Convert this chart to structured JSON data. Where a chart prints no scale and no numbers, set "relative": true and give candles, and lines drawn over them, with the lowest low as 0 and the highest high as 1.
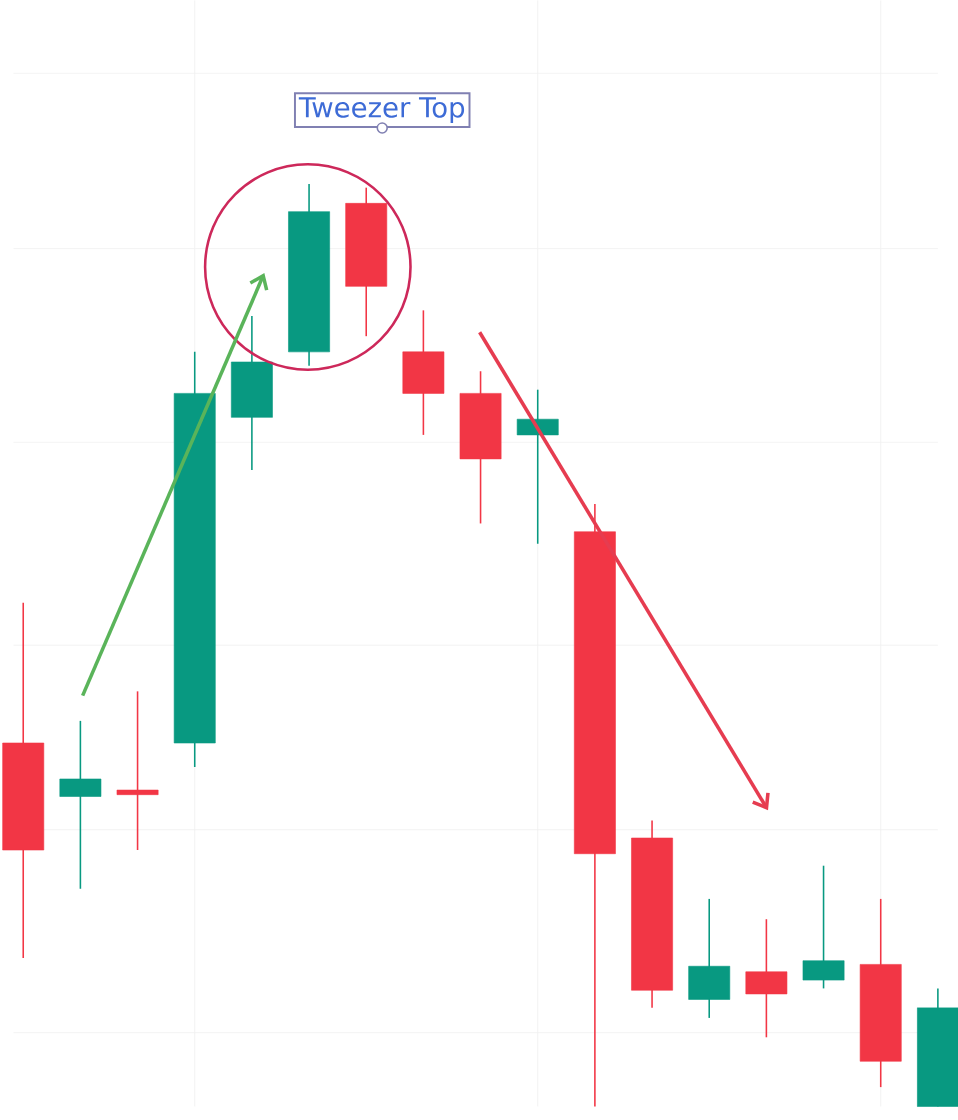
{
  "chart_data": {
    "type": "candlestick",
    "relative": true,
    "grid": true,
    "categories": [
      null,
      null,
      null,
      null,
      null,
      null,
      null,
      null,
      null,
      null,
      null,
      null,
      null,
      null,
      null,
      null,
      null
    ],
    "ohlc": [
      [
        0.394,
        0.546,
        0.161,
        0.278
      ],
      [
        0.336,
        0.418,
        0.236,
        0.355
      ],
      [
        0.343,
        0.45,
        0.278,
        0.338
      ],
      [
        0.394,
        0.818,
        0.368,
        0.773
      ],
      [
        0.747,
        0.857,
        0.69,
        0.807
      ],
      [
        0.818,
        1,
        0.803,
        0.97
      ],
      [
        0.979,
        0.996,
        0.835,
        0.889
      ],
      [
        0.818,
        0.863,
        0.728,
        0.773
      ],
      [
        0.773,
        0.797,
        0.632,
        0.702
      ],
      [
        0.728,
        0.777,
        0.61,
        0.745
      ],
      [
        0.623,
        0.653,
        0,
        0.274
      ],
      [
        0.291,
        0.31,
        0.107,
        0.126
      ],
      [
        0.116,
        0.225,
        0.096,
        0.152
      ],
      [
        0.146,
        0.203,
        0.075,
        0.122
      ],
      [
        0.137,
        0.261,
        0.128,
        0.158
      ],
      [
        0.154,
        0.225,
        0.021,
        0.049
      ],
      [
        0,
        0.128,
        0,
        0.107
      ]
    ],
    "colors": [
      "#f23645",
      "#089981",
      "#f23645",
      "#089981",
      "#089981",
      "#089981",
      "#f23645",
      "#f23645",
      "#f23645",
      "#089981",
      "#f23645",
      "#f23645",
      "#089981",
      "#f23645",
      "#089981",
      "#f23645",
      "#089981"
    ],
    "annotations": [
      "Tweezer Top"
    ]
  }
}
